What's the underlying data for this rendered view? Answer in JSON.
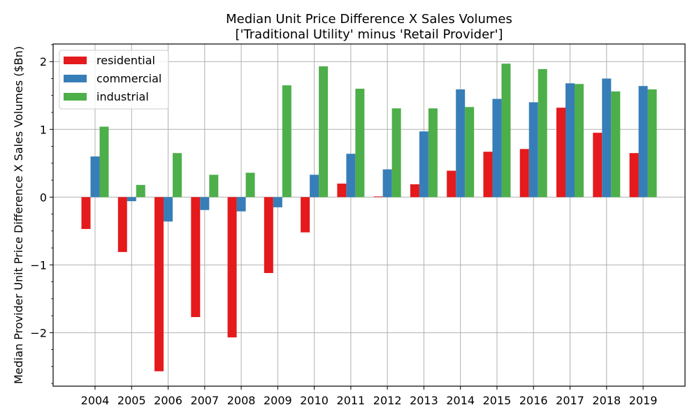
{
  "chart_data": {
    "type": "bar",
    "title": "Median Unit Price Difference X Sales Volumes",
    "subtitle": "['Traditional Utility' minus 'Retail Provider']",
    "xlabel": "",
    "ylabel": "Median Provider Unit Price Difference X Sales Volumes ($Bn)",
    "ylim": [
      -2.79,
      2.26
    ],
    "yticks": [
      -2,
      -1,
      0,
      1,
      2
    ],
    "ytick_labels": [
      "−2",
      "−1",
      "0",
      "1",
      "2"
    ],
    "grid": true,
    "legend_position": "top-left",
    "categories": [
      "2004",
      "2005",
      "2006",
      "2007",
      "2008",
      "2009",
      "2010",
      "2011",
      "2012",
      "2013",
      "2014",
      "2015",
      "2016",
      "2017",
      "2018",
      "2019"
    ],
    "series": [
      {
        "name": "residential",
        "color": "#e41a1c",
        "values": [
          -0.47,
          -0.81,
          -2.57,
          -1.77,
          -2.07,
          -1.12,
          -0.52,
          0.2,
          0.01,
          0.19,
          0.39,
          0.67,
          0.71,
          1.32,
          0.95,
          0.65
        ]
      },
      {
        "name": "commercial",
        "color": "#377eb8",
        "values": [
          0.6,
          -0.06,
          -0.36,
          -0.19,
          -0.21,
          -0.15,
          0.33,
          0.64,
          0.41,
          0.97,
          1.59,
          1.45,
          1.4,
          1.68,
          1.75,
          1.64
        ]
      },
      {
        "name": "industrial",
        "color": "#4daf4a",
        "values": [
          1.04,
          0.18,
          0.65,
          0.33,
          0.36,
          1.65,
          1.93,
          1.6,
          1.31,
          1.31,
          1.33,
          1.97,
          1.89,
          1.67,
          1.56,
          1.59
        ]
      }
    ]
  }
}
